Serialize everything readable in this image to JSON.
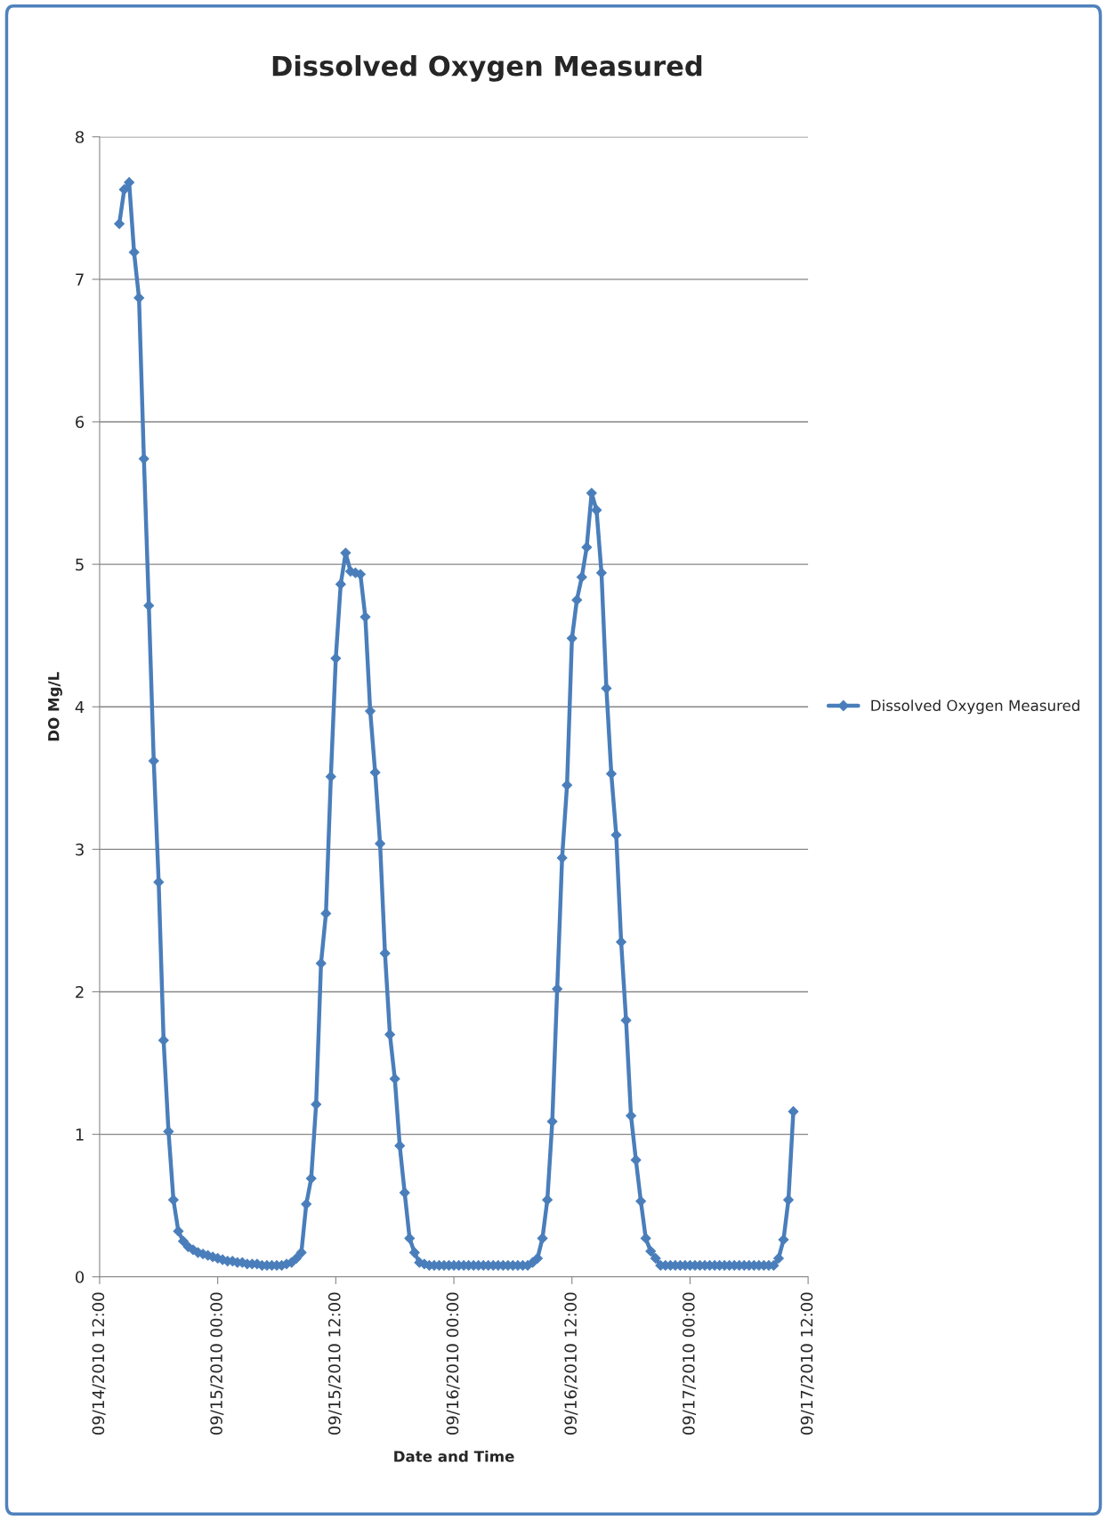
{
  "chart_data": {
    "type": "line",
    "title": "Dissolved Oxygen Measured",
    "xlabel": "Date and Time",
    "ylabel": "DO Mg/L",
    "xlim": [
      "2010-09-14T12:00",
      "2010-09-17T12:00"
    ],
    "xticks": [
      {
        "value": "2010-09-14T12:00",
        "label": "09/14/2010 12:00"
      },
      {
        "value": "2010-09-15T00:00",
        "label": "09/15/2010 00:00"
      },
      {
        "value": "2010-09-15T12:00",
        "label": "09/15/2010 12:00"
      },
      {
        "value": "2010-09-16T00:00",
        "label": "09/16/2010 00:00"
      },
      {
        "value": "2010-09-16T12:00",
        "label": "09/16/2010 12:00"
      },
      {
        "value": "2010-09-17T00:00",
        "label": "09/17/2010 00:00"
      },
      {
        "value": "2010-09-17T12:00",
        "label": "09/17/2010 12:00"
      }
    ],
    "ylim": [
      0,
      8
    ],
    "yticks": [
      0,
      1,
      2,
      3,
      4,
      5,
      6,
      7,
      8
    ],
    "grid": "y",
    "legend": "right",
    "marker": "diamond",
    "line_style": "solid",
    "x": [
      "2010-09-14T14:00",
      "2010-09-14T14:30",
      "2010-09-14T15:00",
      "2010-09-14T15:30",
      "2010-09-14T16:00",
      "2010-09-14T16:30",
      "2010-09-14T17:00",
      "2010-09-14T17:30",
      "2010-09-14T18:00",
      "2010-09-14T18:30",
      "2010-09-14T19:00",
      "2010-09-14T19:30",
      "2010-09-14T20:00",
      "2010-09-14T20:30",
      "2010-09-14T21:00",
      "2010-09-14T21:30",
      "2010-09-14T22:00",
      "2010-09-14T22:30",
      "2010-09-14T23:00",
      "2010-09-14T23:30",
      "2010-09-15T00:00",
      "2010-09-15T00:30",
      "2010-09-15T01:00",
      "2010-09-15T01:30",
      "2010-09-15T02:00",
      "2010-09-15T02:30",
      "2010-09-15T03:00",
      "2010-09-15T03:30",
      "2010-09-15T04:00",
      "2010-09-15T04:30",
      "2010-09-15T05:00",
      "2010-09-15T05:30",
      "2010-09-15T06:00",
      "2010-09-15T06:30",
      "2010-09-15T07:00",
      "2010-09-15T07:30",
      "2010-09-15T08:00",
      "2010-09-15T08:30",
      "2010-09-15T09:00",
      "2010-09-15T09:30",
      "2010-09-15T10:00",
      "2010-09-15T10:30",
      "2010-09-15T11:00",
      "2010-09-15T11:30",
      "2010-09-15T12:00",
      "2010-09-15T12:30",
      "2010-09-15T13:00",
      "2010-09-15T13:30",
      "2010-09-15T14:00",
      "2010-09-15T14:30",
      "2010-09-15T15:00",
      "2010-09-15T15:30",
      "2010-09-15T16:00",
      "2010-09-15T16:30",
      "2010-09-15T17:00",
      "2010-09-15T17:30",
      "2010-09-15T18:00",
      "2010-09-15T18:30",
      "2010-09-15T19:00",
      "2010-09-15T19:30",
      "2010-09-15T20:00",
      "2010-09-15T20:30",
      "2010-09-15T21:00",
      "2010-09-15T21:30",
      "2010-09-15T22:00",
      "2010-09-15T22:30",
      "2010-09-15T23:00",
      "2010-09-15T23:30",
      "2010-09-16T00:00",
      "2010-09-16T00:30",
      "2010-09-16T01:00",
      "2010-09-16T01:30",
      "2010-09-16T02:00",
      "2010-09-16T02:30",
      "2010-09-16T03:00",
      "2010-09-16T03:30",
      "2010-09-16T04:00",
      "2010-09-16T04:30",
      "2010-09-16T05:00",
      "2010-09-16T05:30",
      "2010-09-16T06:00",
      "2010-09-16T06:30",
      "2010-09-16T07:00",
      "2010-09-16T07:30",
      "2010-09-16T08:00",
      "2010-09-16T08:30",
      "2010-09-16T09:00",
      "2010-09-16T09:30",
      "2010-09-16T10:00",
      "2010-09-16T10:30",
      "2010-09-16T11:00",
      "2010-09-16T11:30",
      "2010-09-16T12:00",
      "2010-09-16T12:30",
      "2010-09-16T13:00",
      "2010-09-16T13:30",
      "2010-09-16T14:00",
      "2010-09-16T14:30",
      "2010-09-16T15:00",
      "2010-09-16T15:30",
      "2010-09-16T16:00",
      "2010-09-16T16:30",
      "2010-09-16T17:00",
      "2010-09-16T17:30",
      "2010-09-16T18:00",
      "2010-09-16T18:30",
      "2010-09-16T19:00",
      "2010-09-16T19:30",
      "2010-09-16T20:00",
      "2010-09-16T20:30",
      "2010-09-16T21:00",
      "2010-09-16T21:30",
      "2010-09-16T22:00",
      "2010-09-16T22:30",
      "2010-09-16T23:00",
      "2010-09-16T23:30",
      "2010-09-17T00:00",
      "2010-09-17T00:30",
      "2010-09-17T01:00",
      "2010-09-17T01:30",
      "2010-09-17T02:00",
      "2010-09-17T02:30",
      "2010-09-17T03:00",
      "2010-09-17T03:30",
      "2010-09-17T04:00",
      "2010-09-17T04:30",
      "2010-09-17T05:00",
      "2010-09-17T05:30",
      "2010-09-17T06:00",
      "2010-09-17T06:30",
      "2010-09-17T07:00",
      "2010-09-17T07:30",
      "2010-09-17T08:00",
      "2010-09-17T08:30",
      "2010-09-17T09:00",
      "2010-09-17T09:30",
      "2010-09-17T10:00",
      "2010-09-17T10:30"
    ],
    "series": [
      {
        "name": "Dissolved Oxygen Measured",
        "color": "#4a7ebb",
        "values": [
          7.39,
          7.63,
          7.68,
          7.19,
          6.87,
          5.74,
          4.71,
          3.62,
          2.77,
          1.66,
          1.02,
          0.54,
          0.32,
          0.25,
          0.21,
          0.19,
          0.17,
          0.16,
          0.15,
          0.14,
          0.13,
          0.12,
          0.11,
          0.11,
          0.1,
          0.1,
          0.09,
          0.09,
          0.09,
          0.08,
          0.08,
          0.08,
          0.08,
          0.08,
          0.09,
          0.1,
          0.13,
          0.17,
          0.51,
          0.69,
          1.21,
          2.2,
          2.55,
          3.51,
          4.34,
          4.86,
          5.08,
          4.95,
          4.94,
          4.93,
          4.63,
          3.97,
          3.54,
          3.04,
          2.27,
          1.7,
          1.39,
          0.92,
          0.59,
          0.27,
          0.17,
          0.1,
          0.09,
          0.08,
          0.08,
          0.08,
          0.08,
          0.08,
          0.08,
          0.08,
          0.08,
          0.08,
          0.08,
          0.08,
          0.08,
          0.08,
          0.08,
          0.08,
          0.08,
          0.08,
          0.08,
          0.08,
          0.08,
          0.08,
          0.1,
          0.13,
          0.27,
          0.54,
          1.09,
          2.02,
          2.94,
          3.45,
          4.48,
          4.75,
          4.91,
          5.12,
          5.5,
          5.38,
          4.94,
          4.13,
          3.53,
          3.1,
          2.35,
          1.8,
          1.13,
          0.82,
          0.53,
          0.27,
          0.18,
          0.13,
          0.08,
          0.08,
          0.08,
          0.08,
          0.08,
          0.08,
          0.08,
          0.08,
          0.08,
          0.08,
          0.08,
          0.08,
          0.08,
          0.08,
          0.08,
          0.08,
          0.08,
          0.08,
          0.08,
          0.08,
          0.08,
          0.08,
          0.08,
          0.08,
          0.13,
          0.26,
          0.54,
          1.16
        ]
      }
    ]
  }
}
